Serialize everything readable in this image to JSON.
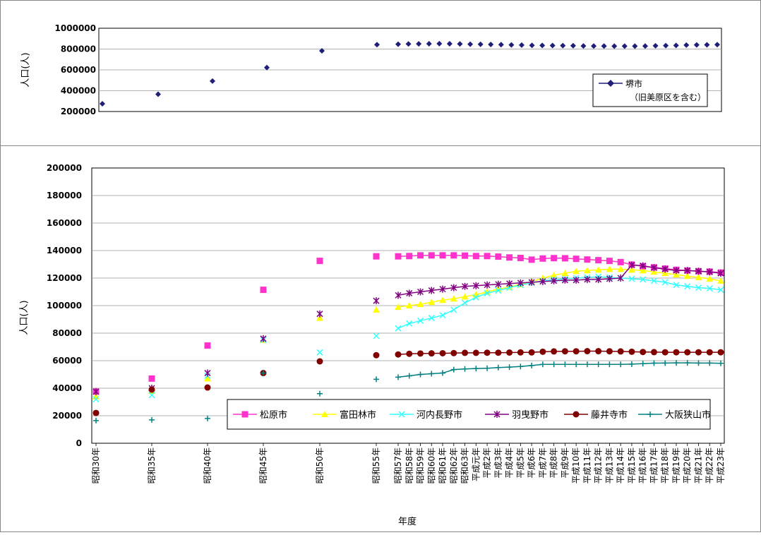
{
  "chart_data": [
    {
      "type": "scatter",
      "ylabel": "人口(人)",
      "ylim": [
        200000,
        1000000
      ],
      "yticks": [
        200000,
        400000,
        600000,
        800000,
        1000000
      ],
      "grid": true,
      "legend_placement": "right",
      "series": [
        {
          "name": "堺市",
          "name_sub": "（旧美原区を含む）",
          "color": "#1f1f7a",
          "marker": "diamond",
          "values": [
            275000,
            366000,
            492000,
            622000,
            783000,
            842000,
            847000,
            849000,
            850000,
            851000,
            852000,
            851000,
            849000,
            847000,
            846000,
            844000,
            842000,
            840000,
            838000,
            836000,
            835000,
            834000,
            833000,
            832000,
            830000,
            829000,
            829000,
            828000,
            828000,
            828000,
            829000,
            831000,
            833000,
            835000,
            838000,
            840000,
            841000,
            842000
          ]
        }
      ]
    },
    {
      "type": "line",
      "xlabel": "年度",
      "ylabel": "人口(人)",
      "ylim": [
        0,
        200000
      ],
      "yticks": [
        0,
        20000,
        40000,
        60000,
        80000,
        100000,
        120000,
        140000,
        160000,
        180000,
        200000
      ],
      "grid": true,
      "legend_placement": "bottom-right",
      "categories": [
        "昭和30年",
        "昭和35年",
        "昭和40年",
        "昭和45年",
        "昭和50年",
        "昭和55年",
        "昭和57年",
        "昭和58年",
        "昭和59年",
        "昭和60年",
        "昭和61年",
        "昭和62年",
        "昭和63年",
        "平成元年",
        "平成2年",
        "平成3年",
        "平成4年",
        "平成5年",
        "平成6年",
        "平成7年",
        "平成8年",
        "平成9年",
        "平成10年",
        "平成11年",
        "平成12年",
        "平成13年",
        "平成14年",
        "平成15年",
        "平成16年",
        "平成17年",
        "平成18年",
        "平成19年",
        "平成20年",
        "平成21年",
        "平成22年",
        "平成23年"
      ],
      "series": [
        {
          "name": "松原市",
          "color": "#ff33cc",
          "marker": "square",
          "values": [
            37500,
            47000,
            71000,
            111500,
            132500,
            135800,
            135800,
            136000,
            136500,
            136500,
            136500,
            136500,
            136300,
            136000,
            136000,
            135600,
            135000,
            134600,
            133400,
            134200,
            134500,
            134400,
            134000,
            133500,
            133000,
            132500,
            131600,
            129800,
            128500,
            127800,
            126900,
            126000,
            125500,
            125000,
            124700,
            124000
          ]
        },
        {
          "name": "富田林市",
          "color": "#ffff00",
          "marker": "triangle",
          "values": [
            34000,
            38000,
            47000,
            75000,
            91000,
            97000,
            99000,
            100000,
            101000,
            102500,
            104000,
            105000,
            106500,
            108000,
            110000,
            112000,
            113500,
            115500,
            117500,
            120000,
            122000,
            123500,
            125000,
            125500,
            126000,
            126500,
            126500,
            126000,
            125500,
            124500,
            123500,
            122500,
            121500,
            120500,
            119500,
            118000
          ]
        },
        {
          "name": "河内長野市",
          "color": "#33ffff",
          "marker": "x",
          "values": [
            32000,
            35000,
            49000,
            75000,
            66000,
            78000,
            83500,
            87000,
            89000,
            91000,
            93000,
            97000,
            102000,
            106000,
            109000,
            111000,
            113000,
            115000,
            116500,
            118000,
            119000,
            119500,
            120000,
            120500,
            121000,
            120500,
            120000,
            119500,
            119000,
            118000,
            117000,
            115000,
            114000,
            113000,
            112500,
            111500
          ]
        },
        {
          "name": "羽曳野市",
          "color": "#800080",
          "marker": "star",
          "values": [
            37500,
            40000,
            51000,
            76000,
            94000,
            103500,
            107500,
            109000,
            110000,
            111000,
            112000,
            113000,
            114000,
            114500,
            115000,
            115500,
            116000,
            116500,
            117000,
            117500,
            118000,
            118500,
            118500,
            119000,
            119000,
            119500,
            120000,
            129500,
            129000,
            127500,
            126500,
            125500,
            125500,
            125000,
            124500,
            123500
          ]
        },
        {
          "name": "藤井寺市",
          "color": "#800000",
          "marker": "circle",
          "values": [
            22000,
            39000,
            40500,
            51000,
            59500,
            64000,
            64500,
            65000,
            65200,
            65300,
            65400,
            65500,
            65700,
            65700,
            65800,
            65800,
            65900,
            66000,
            66000,
            66500,
            66700,
            66800,
            66800,
            66900,
            66900,
            66800,
            66700,
            66500,
            66300,
            66200,
            66100,
            66100,
            66100,
            66100,
            66100,
            66100
          ]
        },
        {
          "name": "大阪狭山市",
          "color": "#008080",
          "marker": "plus",
          "values": [
            16500,
            17000,
            18000,
            51000,
            36000,
            46500,
            48000,
            49000,
            50000,
            50500,
            51000,
            53500,
            54000,
            54300,
            54500,
            55000,
            55300,
            55800,
            56500,
            57300,
            57300,
            57300,
            57300,
            57300,
            57300,
            57300,
            57300,
            57500,
            57800,
            58200,
            58300,
            58400,
            58400,
            58300,
            58300,
            58100
          ]
        }
      ]
    }
  ]
}
